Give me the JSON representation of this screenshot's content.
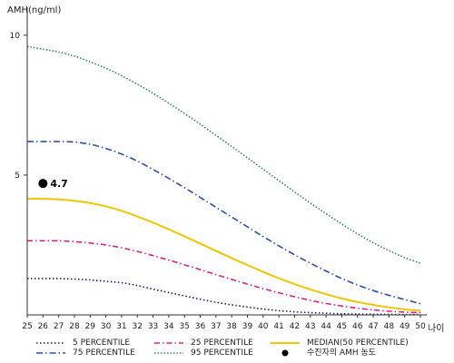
{
  "chart_data": {
    "type": "line",
    "title": "",
    "ylabel": "AMH(ng/ml)",
    "xlabel": "나이",
    "xlim": [
      25,
      50
    ],
    "ylim": [
      0,
      11
    ],
    "y_ticks": [
      5,
      10
    ],
    "x": [
      25,
      26,
      27,
      28,
      29,
      30,
      31,
      32,
      33,
      34,
      35,
      36,
      37,
      38,
      39,
      40,
      41,
      42,
      43,
      44,
      45,
      46,
      47,
      48,
      49,
      50
    ],
    "series": [
      {
        "name": "5 PERCENTILE",
        "color": "#1b1f6b",
        "dash": "1.5 2.5",
        "values": [
          1.3,
          1.3,
          1.3,
          1.28,
          1.25,
          1.2,
          1.15,
          1.05,
          0.92,
          0.8,
          0.68,
          0.56,
          0.45,
          0.36,
          0.28,
          0.21,
          0.15,
          0.11,
          0.08,
          0.06,
          0.04,
          0.03,
          0.02,
          0.02,
          0.01,
          0.01
        ]
      },
      {
        "name": "25 PERCENTILE",
        "color": "#e0218a",
        "dash": "6 3 1.5 3",
        "values": [
          2.65,
          2.65,
          2.65,
          2.62,
          2.57,
          2.5,
          2.4,
          2.27,
          2.12,
          1.96,
          1.79,
          1.62,
          1.44,
          1.27,
          1.1,
          0.94,
          0.79,
          0.65,
          0.52,
          0.41,
          0.32,
          0.24,
          0.18,
          0.13,
          0.1,
          0.08
        ]
      },
      {
        "name": "MEDIAN(50 PERCENTILE)",
        "color": "#f2c500",
        "dash": "",
        "values": [
          4.15,
          4.15,
          4.13,
          4.08,
          4.0,
          3.88,
          3.72,
          3.52,
          3.3,
          3.06,
          2.81,
          2.55,
          2.29,
          2.03,
          1.78,
          1.54,
          1.31,
          1.1,
          0.91,
          0.74,
          0.59,
          0.46,
          0.36,
          0.27,
          0.2,
          0.15
        ]
      },
      {
        "name": "75 PERCENTILE",
        "color": "#2b4fb3",
        "dash": "7 3 1.5 3",
        "values": [
          6.2,
          6.2,
          6.2,
          6.18,
          6.1,
          5.95,
          5.75,
          5.5,
          5.2,
          4.88,
          4.55,
          4.2,
          3.85,
          3.5,
          3.15,
          2.8,
          2.47,
          2.15,
          1.85,
          1.57,
          1.3,
          1.07,
          0.87,
          0.7,
          0.55,
          0.4
        ]
      },
      {
        "name": "95 PERCENTILE",
        "color": "#2e8b57",
        "dash": "1.5 2",
        "values": [
          9.6,
          9.5,
          9.4,
          9.25,
          9.05,
          8.82,
          8.55,
          8.25,
          7.92,
          7.57,
          7.2,
          6.82,
          6.42,
          6.02,
          5.62,
          5.21,
          4.8,
          4.4,
          4.0,
          3.62,
          3.25,
          2.9,
          2.58,
          2.3,
          2.05,
          1.85
        ]
      }
    ],
    "marker": {
      "name": "수진자의 AMH 농도",
      "x": 26,
      "y": 4.7,
      "label": "4.7",
      "color": "#000000"
    },
    "legend": {
      "placement": "bottom"
    }
  }
}
